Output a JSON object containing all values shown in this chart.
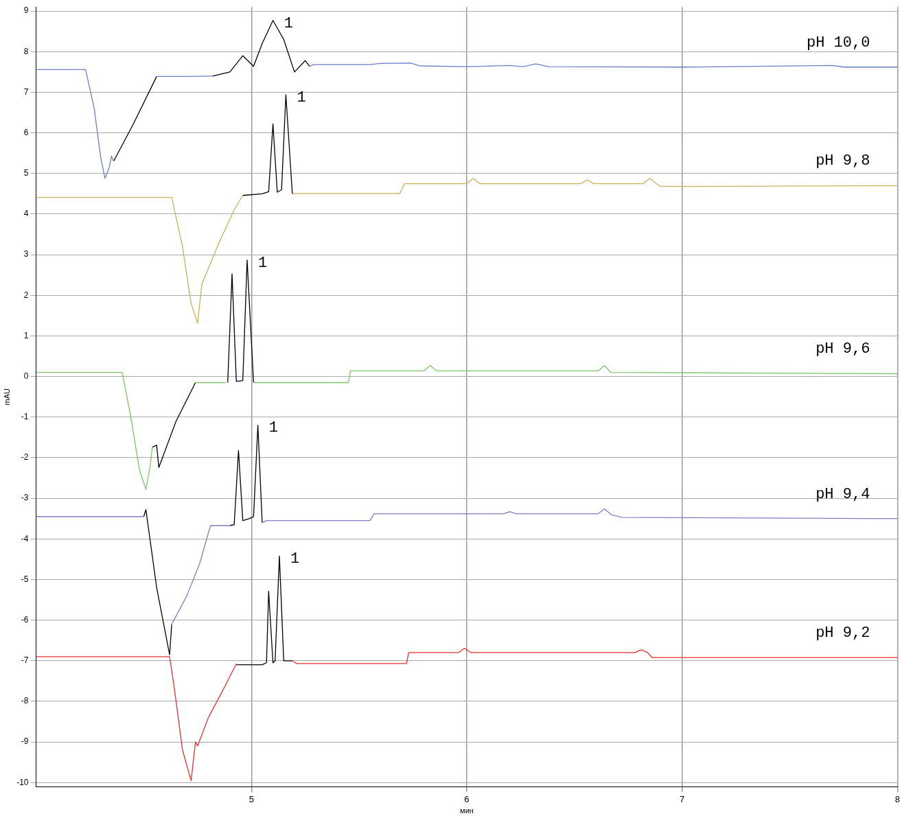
{
  "chart_data": {
    "type": "line",
    "xlabel": "мин",
    "ylabel": "mAU",
    "xlim": [
      4,
      8
    ],
    "xticks": [
      5,
      6,
      7,
      8
    ],
    "ylim": [
      -10.1,
      9.1
    ],
    "yticks": [
      -10,
      -9,
      -8,
      -7,
      -6,
      -5,
      -4,
      -3,
      -2,
      -1,
      0,
      1,
      2,
      3,
      4,
      5,
      6,
      7,
      8,
      9
    ],
    "grid": true,
    "legend": false,
    "marker": "none",
    "line_style": "solid",
    "series": [
      {
        "name": "pH 10,0",
        "color": "#6a7fc8",
        "x": [
          4.0,
          4.23,
          4.27,
          4.3,
          4.32,
          4.34,
          4.35,
          4.36,
          4.37,
          4.56,
          4.7,
          4.82,
          4.83,
          5.27,
          5.29,
          5.55,
          5.6,
          5.74,
          5.78,
          6.0,
          6.2,
          6.26,
          6.32,
          6.38,
          7.0,
          7.7,
          7.75,
          8.0
        ],
        "values": [
          7.56,
          7.56,
          6.6,
          5.4,
          4.88,
          5.15,
          5.43,
          5.3,
          null,
          7.39,
          7.39,
          7.4,
          null,
          7.64,
          7.68,
          7.68,
          7.71,
          7.72,
          7.65,
          7.63,
          7.66,
          7.63,
          7.7,
          7.63,
          7.62,
          7.66,
          7.62,
          7.62
        ]
      },
      {
        "color": "#000000",
        "x": [
          4.36,
          4.45,
          4.56,
          4.6,
          4.82,
          4.9,
          4.96,
          5.01,
          5.05,
          5.1,
          5.15,
          5.2,
          5.25,
          5.27
        ],
        "values": [
          5.3,
          6.2,
          7.39,
          null,
          7.4,
          7.5,
          7.9,
          7.64,
          8.2,
          8.77,
          8.3,
          7.5,
          7.78,
          7.64
        ]
      },
      {
        "name": "pH 9,8",
        "color": "#c8b25a",
        "x": [
          4.0,
          4.63,
          4.68,
          4.72,
          4.75,
          4.77,
          4.85,
          4.92,
          4.96,
          4.97,
          5.19,
          5.21,
          5.69,
          5.71,
          6.0,
          6.03,
          6.06,
          6.53,
          6.56,
          6.59,
          6.82,
          6.85,
          6.88,
          6.9,
          8.0
        ],
        "values": [
          4.41,
          4.41,
          3.2,
          1.8,
          1.31,
          2.28,
          3.3,
          4.1,
          4.46,
          null,
          4.5,
          4.51,
          4.51,
          4.75,
          4.75,
          4.88,
          4.75,
          4.75,
          4.84,
          4.75,
          4.75,
          4.88,
          4.75,
          4.68,
          4.7
        ]
      },
      {
        "color": "#000000",
        "x": [
          4.96,
          5.05,
          5.08,
          5.1,
          5.12,
          5.14,
          5.16,
          5.19
        ],
        "values": [
          4.46,
          4.5,
          4.55,
          6.22,
          4.54,
          4.6,
          6.94,
          4.5
        ]
      },
      {
        "name": "pH 9,6",
        "color": "#7cc46a",
        "x": [
          4.0,
          4.4,
          4.44,
          4.48,
          4.51,
          4.53,
          4.54,
          4.55,
          4.74,
          4.75,
          4.88,
          4.89,
          5.01,
          5.02,
          5.45,
          5.46,
          5.8,
          5.83,
          5.86,
          6.61,
          6.64,
          6.67,
          8.0
        ],
        "values": [
          0.1,
          0.1,
          -1.0,
          -2.3,
          -2.78,
          -2.2,
          -1.74,
          null,
          -0.15,
          -0.15,
          -0.15,
          null,
          -0.15,
          -0.15,
          -0.15,
          0.14,
          0.14,
          0.27,
          0.14,
          0.14,
          0.27,
          0.1,
          0.07
        ]
      },
      {
        "color": "#000000",
        "x": [
          4.54,
          4.56,
          4.57,
          4.65,
          4.74,
          4.75,
          4.89,
          4.91,
          4.93,
          4.96,
          4.98,
          5.01
        ],
        "values": [
          -1.74,
          -1.69,
          -2.24,
          -1.1,
          -0.15,
          null,
          -0.15,
          2.53,
          -0.12,
          -0.1,
          2.87,
          -0.15
        ]
      },
      {
        "name": "pH 9,4",
        "color": "#8878c4",
        "x": [
          4.0,
          4.5,
          4.51,
          4.62,
          4.63,
          4.7,
          4.76,
          4.81,
          4.9,
          4.91,
          5.05,
          5.07,
          5.55,
          5.57,
          6.17,
          6.2,
          6.23,
          6.61,
          6.64,
          6.67,
          6.72,
          8.0
        ],
        "values": [
          -3.45,
          -3.45,
          null,
          null,
          -6.1,
          -5.4,
          -4.6,
          -3.67,
          -3.67,
          null,
          -3.6,
          -3.55,
          -3.55,
          -3.38,
          -3.38,
          -3.33,
          -3.38,
          -3.38,
          -3.26,
          -3.4,
          -3.47,
          -3.5
        ]
      },
      {
        "color": "#000000",
        "x": [
          4.5,
          4.51,
          4.56,
          4.62,
          4.63,
          4.64,
          4.9,
          4.92,
          4.94,
          4.96,
          4.99,
          5.01,
          5.03,
          5.05
        ],
        "values": [
          -3.45,
          -3.28,
          -5.2,
          -6.85,
          -6.1,
          null,
          -3.67,
          -3.65,
          -1.82,
          -3.55,
          -3.5,
          -3.45,
          -1.2,
          -3.6
        ]
      },
      {
        "name": "pH 9,2",
        "color": "#e83030",
        "x": [
          4.0,
          4.62,
          4.64,
          4.68,
          4.72,
          4.74,
          4.75,
          4.8,
          4.87,
          4.93,
          4.94,
          5.19,
          5.21,
          5.72,
          5.73,
          5.96,
          5.99,
          6.02,
          6.78,
          6.81,
          6.84,
          6.86,
          8.0
        ],
        "values": [
          -6.9,
          -6.9,
          -7.6,
          -9.2,
          -9.95,
          -9.0,
          -9.1,
          -8.4,
          -7.7,
          -7.07,
          null,
          -7.0,
          -7.07,
          -7.07,
          -6.8,
          -6.8,
          -6.69,
          -6.8,
          -6.8,
          -6.73,
          -6.8,
          -6.92,
          -6.92
        ]
      },
      {
        "color": "#000000",
        "x": [
          4.93,
          5.05,
          5.07,
          5.08,
          5.1,
          5.11,
          5.13,
          5.15,
          5.19
        ],
        "values": [
          -7.1,
          -7.1,
          -7.05,
          -5.29,
          -7.05,
          -7.0,
          -4.42,
          -7.0,
          -7.0
        ]
      }
    ],
    "annotations": [
      "1",
      "1",
      "1",
      "1",
      "1"
    ]
  }
}
